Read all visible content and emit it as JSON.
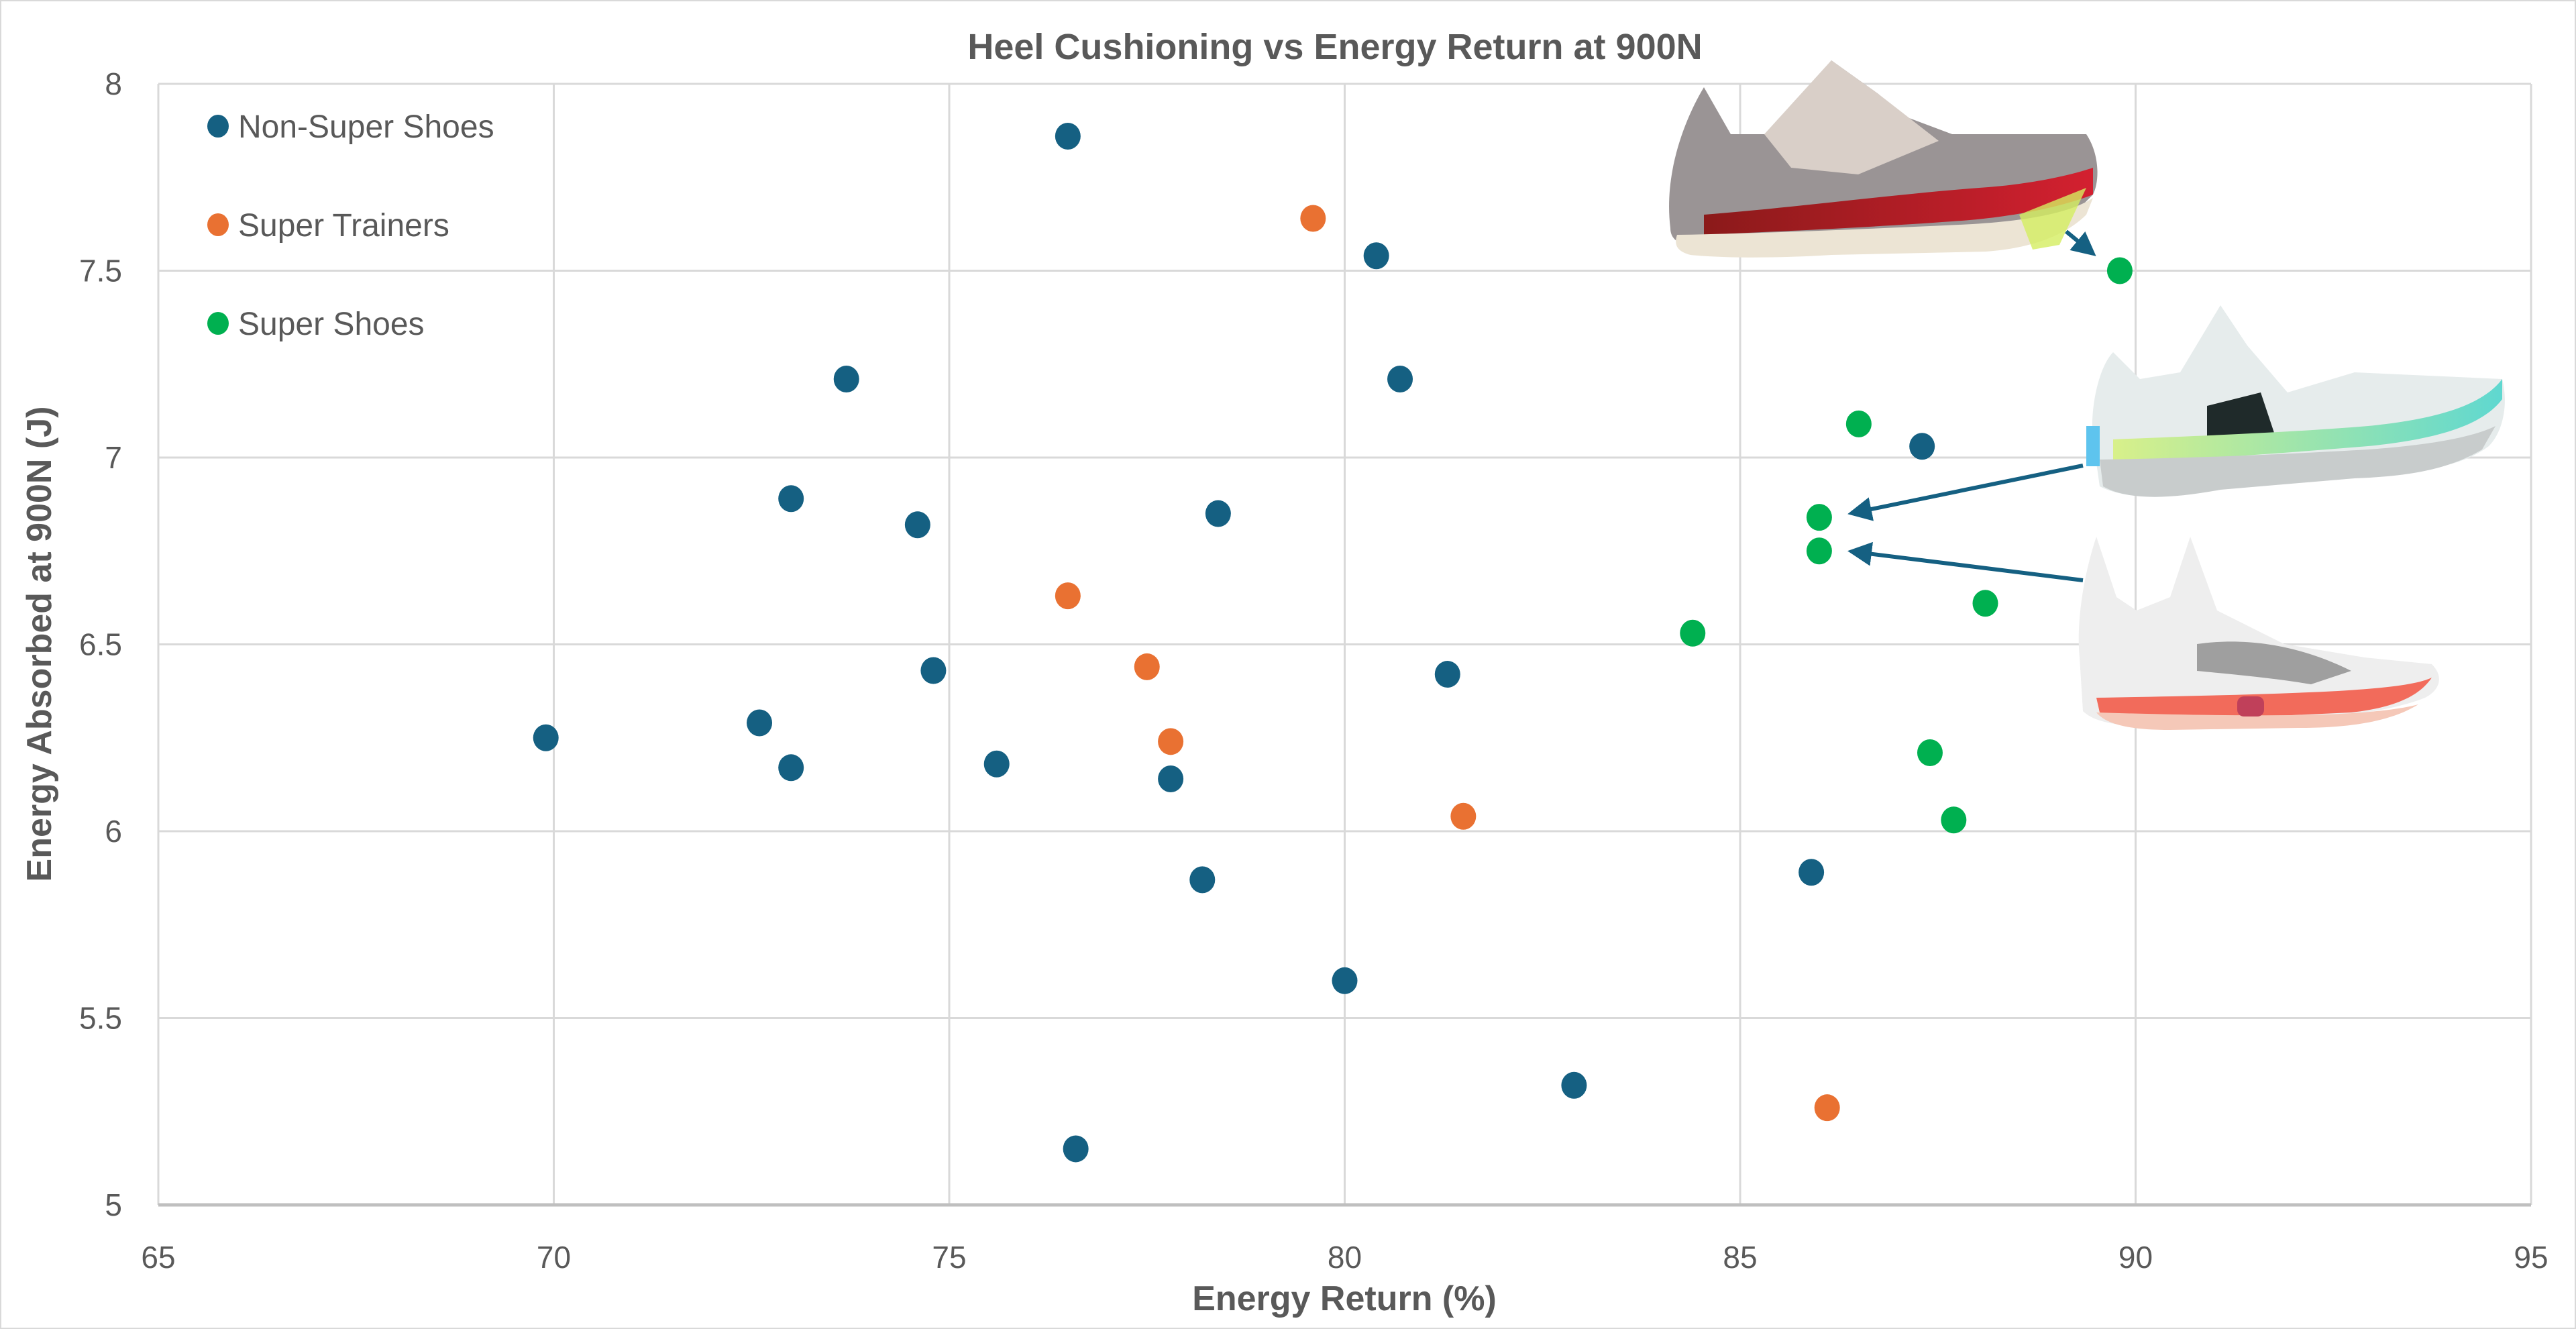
{
  "chart_data": {
    "type": "scatter",
    "title": "Heel Cushioning vs Energy Return at 900N",
    "xlabel": "Energy Return (%)",
    "ylabel": "Energy Absorbed at 900N (J)",
    "xlim": [
      65,
      95
    ],
    "ylim": [
      5,
      8
    ],
    "x_ticks": [
      "65",
      "70",
      "75",
      "80",
      "85",
      "90",
      "95"
    ],
    "y_ticks": [
      "5",
      "5.5",
      "6",
      "6.5",
      "7",
      "7.5",
      "8"
    ],
    "grid": true,
    "legend_position": "top-left (inside plot)",
    "series": [
      {
        "name": "Non-Super Shoes",
        "color": "#156082",
        "points": [
          [
            76.5,
            7.86
          ],
          [
            80.4,
            7.54
          ],
          [
            73.7,
            7.21
          ],
          [
            80.7,
            7.21
          ],
          [
            73.0,
            6.89
          ],
          [
            74.6,
            6.82
          ],
          [
            78.4,
            6.85
          ],
          [
            74.8,
            6.43
          ],
          [
            81.3,
            6.42
          ],
          [
            69.9,
            6.25
          ],
          [
            72.6,
            6.29
          ],
          [
            73.0,
            6.17
          ],
          [
            75.6,
            6.18
          ],
          [
            77.8,
            6.14
          ],
          [
            87.3,
            7.03
          ],
          [
            78.2,
            5.87
          ],
          [
            85.9,
            5.89
          ],
          [
            80.0,
            5.6
          ],
          [
            82.9,
            5.32
          ],
          [
            76.6,
            5.15
          ]
        ]
      },
      {
        "name": "Super Trainers",
        "color": "#E97132",
        "points": [
          [
            79.6,
            7.64
          ],
          [
            76.5,
            6.63
          ],
          [
            77.5,
            6.44
          ],
          [
            77.8,
            6.24
          ],
          [
            81.5,
            6.04
          ],
          [
            86.1,
            5.26
          ]
        ]
      },
      {
        "name": "Super Shoes",
        "color": "#00B050",
        "points": [
          [
            89.8,
            7.5
          ],
          [
            86.5,
            7.09
          ],
          [
            86.0,
            6.84
          ],
          [
            86.0,
            6.75
          ],
          [
            84.4,
            6.53
          ],
          [
            88.1,
            6.61
          ],
          [
            87.4,
            6.21
          ],
          [
            87.7,
            6.03
          ]
        ]
      }
    ],
    "annotations": [
      {
        "type": "image-with-arrow",
        "description": "shoe cross-section photo (grey upper, red midsole layer, cream sole)",
        "points_to": [
          89.8,
          7.5
        ]
      },
      {
        "type": "image-with-arrow",
        "description": "shoe cross-section photo (white upper, lime/teal foam layers)",
        "points_to": [
          86.0,
          6.84
        ]
      },
      {
        "type": "image-with-arrow",
        "description": "shoe cross-section photo (white knit upper, coral pink air pod sole)",
        "points_to": [
          86.0,
          6.75
        ]
      }
    ],
    "gridline_color": "#d9d9d9",
    "arrow_color": "#156082"
  }
}
